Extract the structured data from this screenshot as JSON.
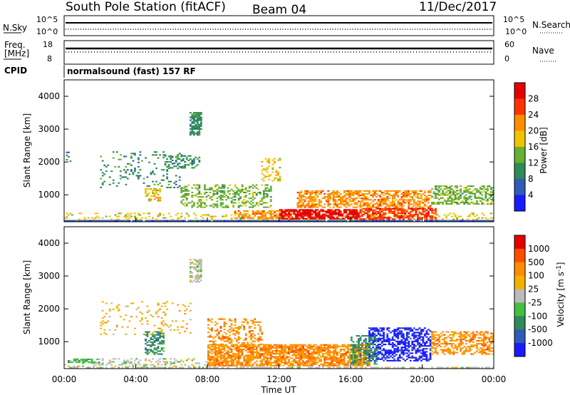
{
  "header": {
    "station": "South Pole Station (fitACF)",
    "beam": "Beam 04",
    "date": "11/Dec/2017"
  },
  "status_panels": {
    "nsky": {
      "label": "N.Sky",
      "ticks": [
        "10^5",
        "10^0"
      ]
    },
    "nsearch": {
      "label": "N.Search",
      "ticks": [
        "10^5",
        "10^0"
      ]
    },
    "freq": {
      "label_line1": "Freq.",
      "label_line2": "[MHz]",
      "ticks": [
        "18",
        "8"
      ]
    },
    "nave": {
      "label": "Nave",
      "ticks": [
        "60",
        "0"
      ]
    },
    "cpid": {
      "label": "CPID",
      "program": "normalsound (fast) 157 RF"
    }
  },
  "chart_data": [
    {
      "type": "heatmap",
      "name": "power",
      "xlabel": "",
      "ylabel": "Slant Range [km]",
      "x_ticks": [
        "00:00",
        "04:00",
        "08:00",
        "12:00",
        "16:00",
        "20:00",
        "00:00"
      ],
      "x_range_hours": [
        0,
        24
      ],
      "y_ticks": [
        1000,
        2000,
        3000,
        4000
      ],
      "ylim": [
        180,
        4500
      ],
      "colorbar": {
        "label": "Power [dB]",
        "ticks": [
          "4",
          "8",
          "12",
          "16",
          "20",
          "24",
          "28"
        ],
        "colors": [
          "#1a1aff",
          "#2e5cb8",
          "#2e8b57",
          "#66b032",
          "#f2c400",
          "#ff8c00",
          "#ff3300",
          "#e60000"
        ]
      },
      "regions": [
        {
          "t0": 0.0,
          "t1": 24.0,
          "r0": 190,
          "r1": 215,
          "level": 1,
          "density": 0.95
        },
        {
          "t0": 0.0,
          "t1": 24.0,
          "r0": 230,
          "r1": 420,
          "level": 4,
          "density": 0.22
        },
        {
          "t0": 12.0,
          "t1": 16.5,
          "r0": 250,
          "r1": 560,
          "level": 7,
          "density": 0.8
        },
        {
          "t0": 9.5,
          "t1": 12.0,
          "r0": 260,
          "r1": 500,
          "level": 5,
          "density": 0.55
        },
        {
          "t0": 16.5,
          "t1": 20.8,
          "r0": 240,
          "r1": 600,
          "level": 6,
          "density": 0.7
        },
        {
          "t0": 13.0,
          "t1": 20.5,
          "r0": 600,
          "r1": 1100,
          "level": 5,
          "density": 0.6
        },
        {
          "t0": 20.5,
          "t1": 24.0,
          "r0": 700,
          "r1": 1250,
          "level": 3,
          "density": 0.55
        },
        {
          "t0": 6.5,
          "t1": 11.5,
          "r0": 600,
          "r1": 1300,
          "level": 3,
          "density": 0.35
        },
        {
          "t0": 7.0,
          "t1": 7.6,
          "r0": 2800,
          "r1": 3500,
          "level": 2,
          "density": 0.7
        },
        {
          "t0": 5.5,
          "t1": 7.5,
          "r0": 1800,
          "r1": 2200,
          "level": 2,
          "density": 0.35
        },
        {
          "t0": 4.5,
          "t1": 5.3,
          "r0": 800,
          "r1": 1200,
          "level": 4,
          "density": 0.5
        },
        {
          "t0": 2.0,
          "t1": 6.5,
          "r0": 1200,
          "r1": 2300,
          "level": 2,
          "density": 0.12
        },
        {
          "t0": 11.0,
          "t1": 12.0,
          "r0": 1400,
          "r1": 2100,
          "level": 4,
          "density": 0.35
        },
        {
          "t0": 0.1,
          "t1": 0.4,
          "r0": 2000,
          "r1": 2300,
          "level": 2,
          "density": 0.4
        }
      ]
    },
    {
      "type": "heatmap",
      "name": "velocity",
      "xlabel": "Time UT",
      "ylabel": "Slant Range [km]",
      "x_ticks": [
        "00:00",
        "04:00",
        "08:00",
        "12:00",
        "16:00",
        "20:00",
        "00:00"
      ],
      "x_range_hours": [
        0,
        24
      ],
      "y_ticks": [
        1000,
        2000,
        3000,
        4000
      ],
      "ylim": [
        180,
        4500
      ],
      "colorbar": {
        "label": "Velocity [m s",
        "label_sup": "-1",
        "label_end": "]",
        "ticks": [
          "1000",
          "500",
          "100",
          "25",
          "-25",
          "-100",
          "-500",
          "-1000"
        ],
        "colors": [
          "#1a1aff",
          "#2e5cb8",
          "#2e8b57",
          "#44c040",
          "#bbbbbb",
          "#f2b200",
          "#ff8c00",
          "#ff4d00",
          "#e60000"
        ]
      },
      "regions": [
        {
          "t0": 0.0,
          "t1": 24.0,
          "r0": 190,
          "r1": 215,
          "level": 4,
          "density": 0.6
        },
        {
          "t0": 8.0,
          "t1": 17.0,
          "r0": 250,
          "r1": 900,
          "level": 6,
          "density": 0.75
        },
        {
          "t0": 8.0,
          "t1": 11.0,
          "r0": 900,
          "r1": 1700,
          "level": 6,
          "density": 0.35
        },
        {
          "t0": 17.0,
          "t1": 20.5,
          "r0": 400,
          "r1": 1400,
          "level": 0,
          "density": 0.55
        },
        {
          "t0": 16.0,
          "t1": 17.5,
          "r0": 300,
          "r1": 1200,
          "level": 2,
          "density": 0.45
        },
        {
          "t0": 20.5,
          "t1": 24.0,
          "r0": 600,
          "r1": 1300,
          "level": 6,
          "density": 0.5
        },
        {
          "t0": 4.5,
          "t1": 5.5,
          "r0": 600,
          "r1": 1300,
          "level": 2,
          "density": 0.5
        },
        {
          "t0": 7.0,
          "t1": 7.6,
          "r0": 2800,
          "r1": 3500,
          "level": 4,
          "density": 0.6
        },
        {
          "t0": 0.0,
          "t1": 8.0,
          "r0": 230,
          "r1": 500,
          "level": 4,
          "density": 0.25
        },
        {
          "t0": 2.0,
          "t1": 7.0,
          "r0": 1200,
          "r1": 2200,
          "level": 5,
          "density": 0.12
        },
        {
          "t0": 0.2,
          "t1": 2.0,
          "r0": 350,
          "r1": 450,
          "level": 3,
          "density": 0.6
        }
      ]
    }
  ]
}
